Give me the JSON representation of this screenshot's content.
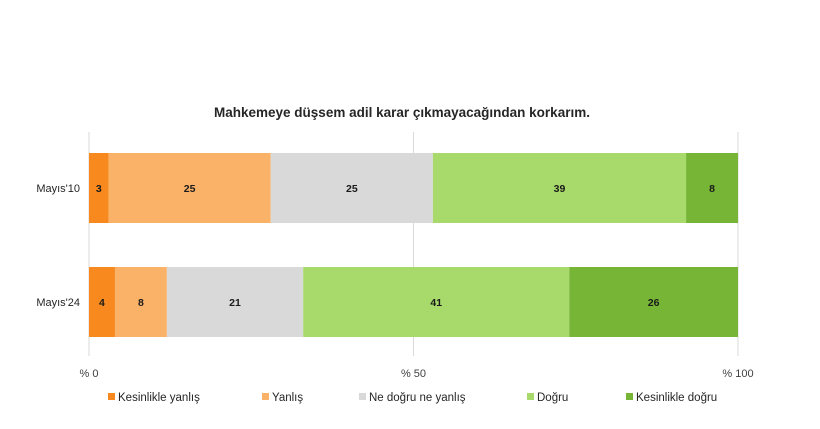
{
  "chart_data": {
    "type": "bar",
    "orientation": "horizontal",
    "stacked": true,
    "title": "Mahkemeye düşsem adil karar çıkmayacağından korkarım.",
    "categories": [
      "Mayıs'10",
      "Mayıs'24"
    ],
    "series": [
      {
        "name": "Kesinlikle yanlış",
        "color": "#F7891E",
        "values": [
          3,
          4
        ]
      },
      {
        "name": "Yanlış",
        "color": "#F9B267",
        "values": [
          25,
          8
        ]
      },
      {
        "name": "Ne doğru ne yanlış",
        "color": "#D9D9D9",
        "values": [
          25,
          21
        ]
      },
      {
        "name": "Doğru",
        "color": "#A8D96B",
        "values": [
          39,
          41
        ]
      },
      {
        "name": "Kesinlikle doğru",
        "color": "#77B536",
        "values": [
          8,
          26
        ]
      }
    ],
    "xlim": [
      0,
      100
    ],
    "xticks": [
      0,
      50,
      100
    ],
    "xtick_labels": [
      "% 0",
      "% 50",
      "% 100"
    ],
    "grid": true,
    "legend_position": "bottom"
  }
}
